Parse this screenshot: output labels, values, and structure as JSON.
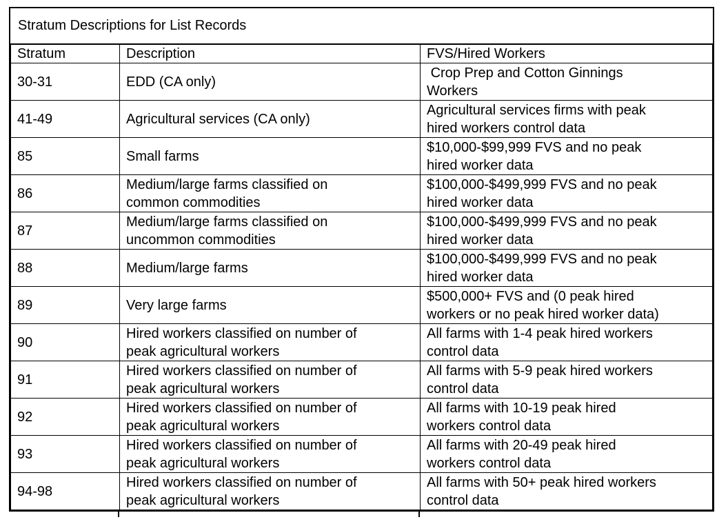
{
  "table": {
    "title": "Stratum Descriptions for List Records",
    "headers": [
      "Stratum",
      "Description",
      "FVS/Hired Workers"
    ],
    "rows": [
      {
        "stratum": "30-31",
        "description": "EDD (CA only)",
        "fvs": " Crop Prep and Cotton Ginnings\nWorkers"
      },
      {
        "stratum": "41-49",
        "description": "Agricultural services (CA only)",
        "fvs": "Agricultural services firms with peak\nhired workers control data"
      },
      {
        "stratum": "85",
        "description": "Small farms",
        "fvs": "$10,000-$99,999 FVS and no peak\nhired worker data"
      },
      {
        "stratum": "86",
        "description": "Medium/large farms classified on\ncommon commodities",
        "fvs": "$100,000-$499,999 FVS and no peak\nhired worker data"
      },
      {
        "stratum": "87",
        "description": "Medium/large farms classified on\nuncommon commodities",
        "fvs": "$100,000-$499,999 FVS and no peak\nhired worker data"
      },
      {
        "stratum": "88",
        "description": "Medium/large farms",
        "fvs": "$100,000-$499,999 FVS and no peak\nhired worker data"
      },
      {
        "stratum": "89",
        "description": "Very large farms",
        "fvs": "$500,000+ FVS and (0 peak hired\nworkers or no peak hired worker data)"
      },
      {
        "stratum": "90",
        "description": "Hired workers classified on number of\npeak agricultural workers",
        "fvs": "All farms with 1-4 peak hired workers\ncontrol data"
      },
      {
        "stratum": "91",
        "description": "Hired workers classified on number of\npeak agricultural workers",
        "fvs": "All farms with 5-9 peak hired workers\ncontrol data"
      },
      {
        "stratum": "92",
        "description": "Hired workers classified on number of\npeak agricultural workers",
        "fvs": "All farms with 10-19 peak hired\nworkers control data"
      },
      {
        "stratum": "93",
        "description": "Hired workers classified on number of\npeak agricultural workers",
        "fvs": "All farms with 20-49 peak hired\nworkers control data"
      },
      {
        "stratum": "94-98",
        "description": "Hired workers classified on number of\npeak agricultural workers",
        "fvs": "All farms with 50+ peak hired workers\ncontrol data"
      }
    ]
  }
}
